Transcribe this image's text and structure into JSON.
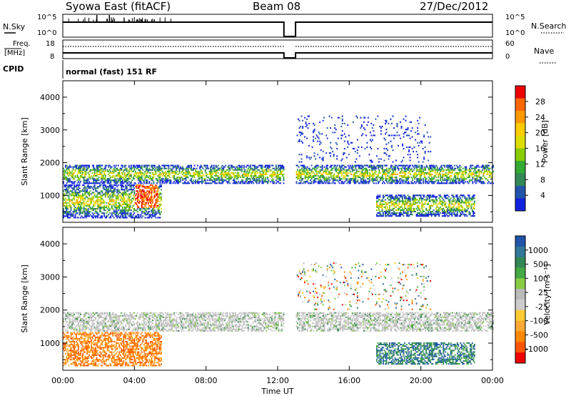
{
  "header": {
    "station": "Syowa East (fitACF)",
    "beam": "Beam 08",
    "date": "27/Dec/2012"
  },
  "sky_panel": {
    "left_label": "N.Sky",
    "right_label": "N.Search",
    "left_ticks": [
      "10^5",
      "10^0"
    ],
    "right_ticks": [
      "10^5",
      "10^0"
    ],
    "data_gap_hours": [
      12.35,
      13.0
    ]
  },
  "freq_panel": {
    "left_label_top": "Freq.",
    "left_label_unit": "[MHz]",
    "right_label": "Nave",
    "left_ticks": [
      "18",
      "8"
    ],
    "right_ticks": [
      "60",
      "0"
    ]
  },
  "cpid": {
    "label": "CPID",
    "text": "normal (fast) 151 RF"
  },
  "power_panel": {
    "ylabel": "Slant Range [km]",
    "colorbar_label": "Power [dB]",
    "colorbar_ticks": [
      "28",
      "24",
      "20",
      "16",
      "12",
      "8",
      "4"
    ],
    "colorbar_colors": [
      "#ee0000",
      "#ff6600",
      "#ff9900",
      "#ffcc00",
      "#dddd00",
      "#88cc00",
      "#33aa33",
      "#338855",
      "#2255aa",
      "#1122dd"
    ]
  },
  "velocity_panel": {
    "ylabel": "Slant Range [km]",
    "colorbar_label": "Velocity [m s⁻¹]",
    "colorbar_ticks": [
      "1000",
      "500",
      "100",
      "25",
      "-25",
      "-100",
      "-500",
      "-1000"
    ],
    "colorbar_colors": [
      "#2255aa",
      "#337799",
      "#338855",
      "#44aa44",
      "#88cc44",
      "#bbbbbb",
      "#cccccc",
      "#ffcc33",
      "#ffaa33",
      "#ff8800",
      "#ff5500",
      "#ee0000"
    ]
  },
  "xaxis": {
    "label": "Time UT",
    "ticks": [
      "00:00",
      "04:00",
      "08:00",
      "12:00",
      "16:00",
      "20:00",
      "00:00"
    ]
  },
  "chart_data": {
    "type": "heatmap",
    "title": "Syowa East (fitACF)  Beam 08  27/Dec/2012",
    "xlabel": "Time UT",
    "ylabel": "Slant Range [km]",
    "xlim_hours": [
      0,
      24
    ],
    "ylim_km": [
      180,
      4500
    ],
    "yticks": [
      1000,
      2000,
      3000,
      4000
    ],
    "data_gap_hours": [
      12.35,
      13.0
    ],
    "scatter_bands": [
      {
        "name": "main F-region echo band",
        "t_start": 0.0,
        "t_end": 24.0,
        "range_km": [
          1350,
          1900
        ]
      },
      {
        "name": "lower echo band",
        "t_start": 0.0,
        "t_end": 5.5,
        "range_km": [
          300,
          1300
        ]
      },
      {
        "name": "lower echo band evening",
        "t_start": 17.5,
        "t_end": 23.0,
        "range_km": [
          350,
          1000
        ]
      },
      {
        "name": "sporadic far echoes",
        "t_start": 13.0,
        "t_end": 20.5,
        "range_km": [
          2000,
          3400
        ]
      }
    ],
    "power_scale_db": [
      0,
      30
    ],
    "velocity_scale_ms": [
      -1000,
      1000
    ]
  }
}
